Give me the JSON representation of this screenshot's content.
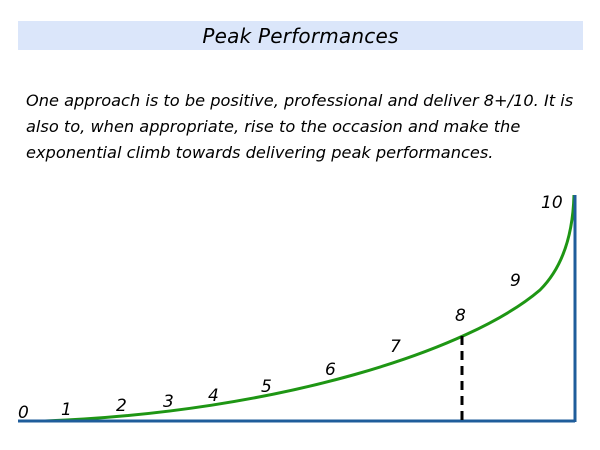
{
  "slide": {
    "title": "Peak Performances",
    "body": "One approach is to be positive, professional and deliver 8+/10. It is also to, when appropriate, rise to the occasion and make the exponential climb towards delivering peak performances."
  },
  "diagram": {
    "scale_labels": [
      "0",
      "1",
      "2",
      "3",
      "4",
      "5",
      "6",
      "7",
      "8",
      "9",
      "10"
    ],
    "marker_label": "8",
    "colors": {
      "curve": "#1e9614",
      "axis": "#1f5d9b",
      "marker": "#000000",
      "banner": "#dbe6fa"
    }
  }
}
